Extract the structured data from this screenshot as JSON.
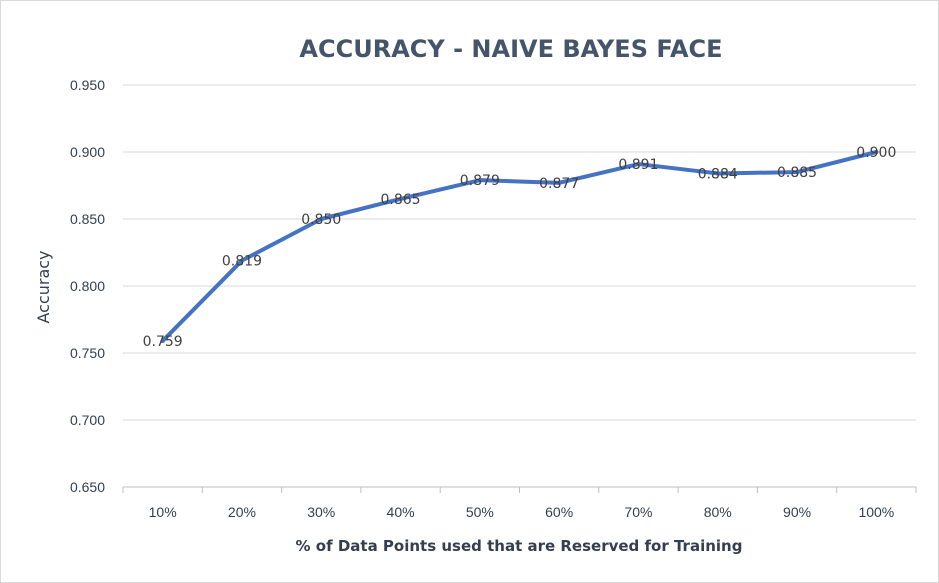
{
  "chart_data": {
    "type": "line",
    "title": "ACCURACY - NAIVE BAYES FACE",
    "xlabel": "% of Data Points used that are Reserved for Training",
    "ylabel": "Accuracy",
    "categories": [
      "10%",
      "20%",
      "30%",
      "40%",
      "50%",
      "60%",
      "70%",
      "80%",
      "90%",
      "100%"
    ],
    "series": [
      {
        "values": [
          0.759,
          0.819,
          0.85,
          0.865,
          0.879,
          0.877,
          0.891,
          0.884,
          0.885,
          0.9
        ],
        "color": "#4472c4"
      }
    ],
    "data_labels": [
      "0.759",
      "0.819",
      "0.850",
      "0.865",
      "0.879",
      "0.877",
      "0.891",
      "0.884",
      "0.885",
      "0.900"
    ],
    "ylim": [
      0.65,
      0.95
    ],
    "yticks": [
      "0.650",
      "0.700",
      "0.750",
      "0.800",
      "0.850",
      "0.900",
      "0.950"
    ],
    "grid": true,
    "legend": false
  }
}
